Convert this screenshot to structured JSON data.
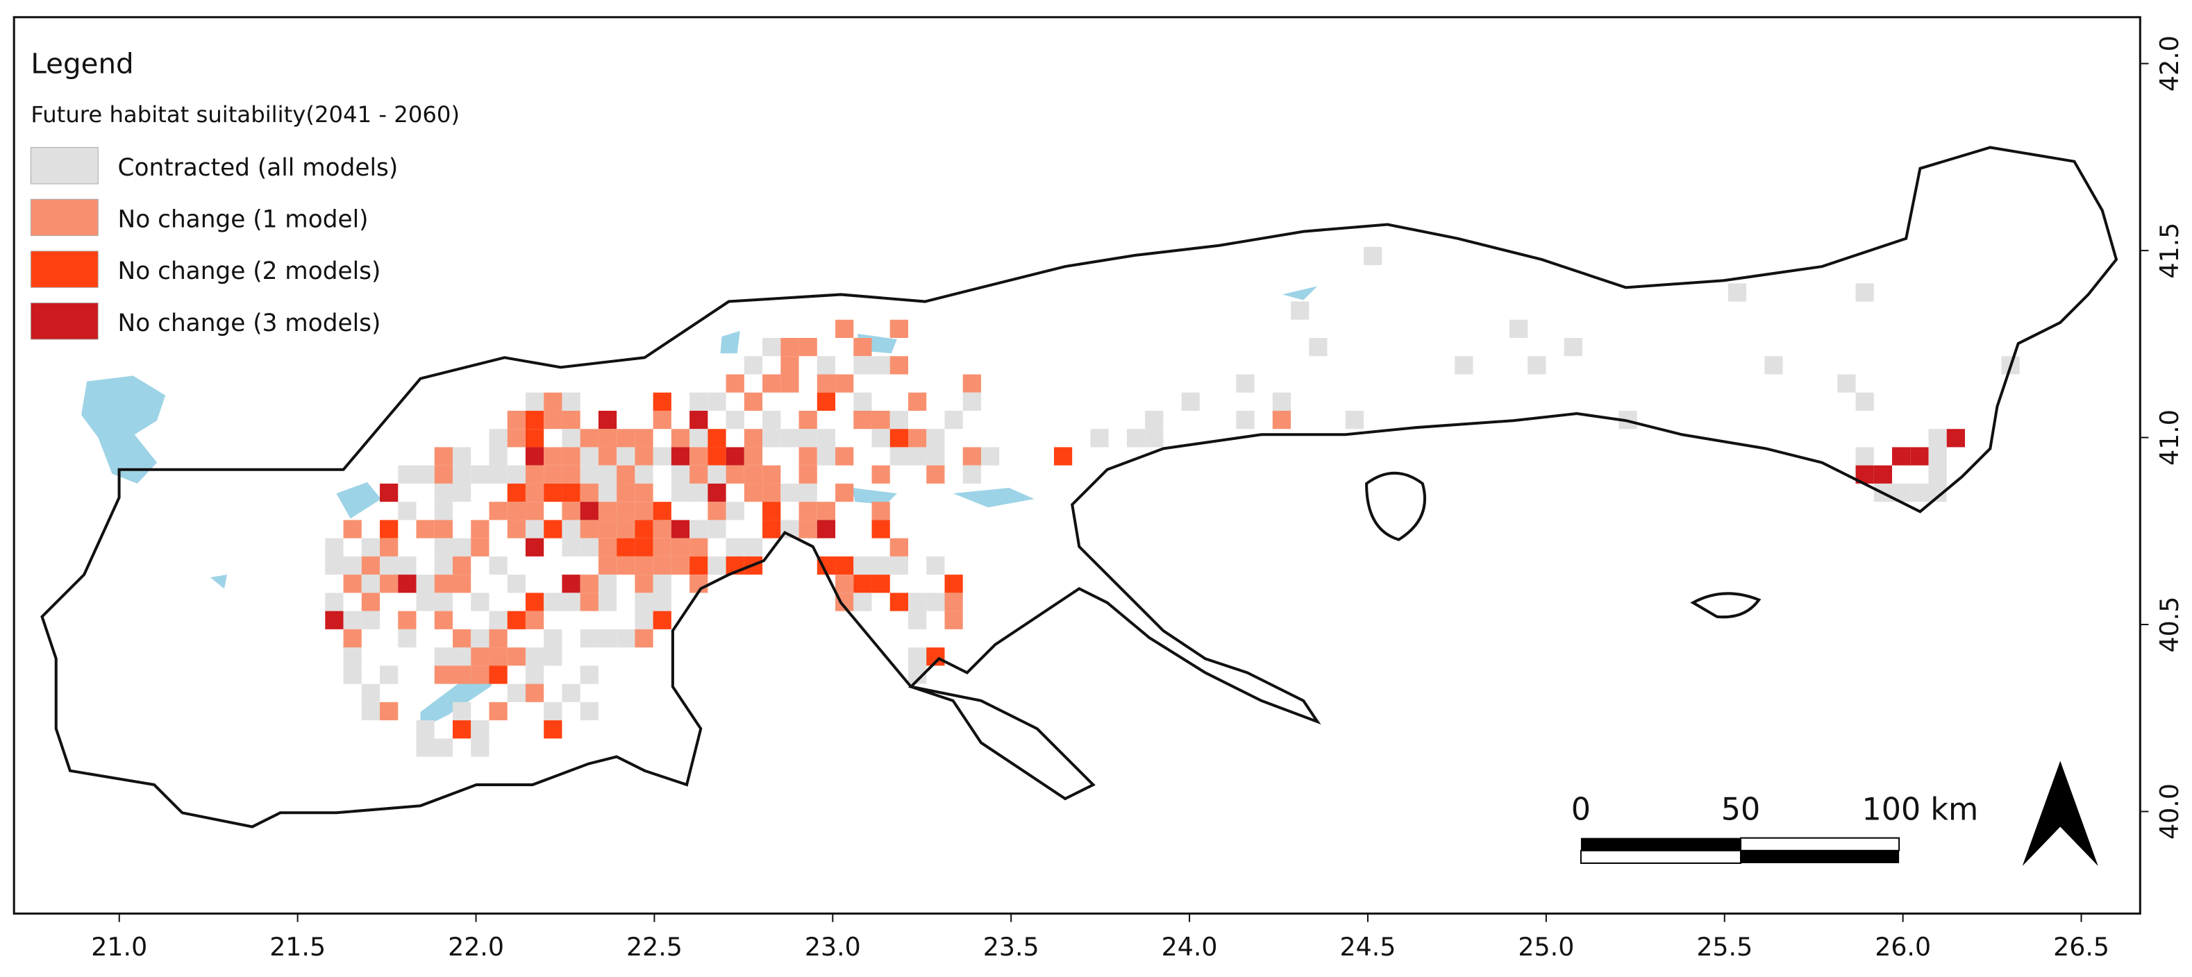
{
  "map": {
    "legend": {
      "title": "Legend",
      "subtitle": "Future habitat suitability(2041 - 2060)",
      "items": [
        {
          "label": "Contracted (all models)",
          "color": "#e0e0e0"
        },
        {
          "label": "No change (1 model)",
          "color": "#f8906f"
        },
        {
          "label": "No change (2 models)",
          "color": "#ff4111"
        },
        {
          "label": "No change (3 models)",
          "color": "#cc1a1e"
        }
      ]
    },
    "xlim": [
      20.705,
      26.665
    ],
    "ylim": [
      39.727,
      42.124
    ],
    "xticks": [
      {
        "value": 21,
        "label": "21.0"
      },
      21.5,
      {
        "value": 22,
        "label": "22.0"
      },
      22.5,
      {
        "value": 23,
        "label": "23.0"
      },
      23.5,
      {
        "value": 24,
        "label": "24.0"
      },
      24.5,
      {
        "value": 25,
        "label": "25.0"
      },
      25.5,
      {
        "value": 26,
        "label": "26.0"
      },
      26.5
    ],
    "yticks": [
      {
        "value": 40,
        "label": "40.0"
      },
      40.5,
      {
        "value": 41,
        "label": "41.0"
      },
      41.5,
      {
        "value": 42,
        "label": "42.0"
      }
    ],
    "scale_bar": {
      "labels": [
        "0",
        "50",
        "100 km"
      ]
    }
  }
}
